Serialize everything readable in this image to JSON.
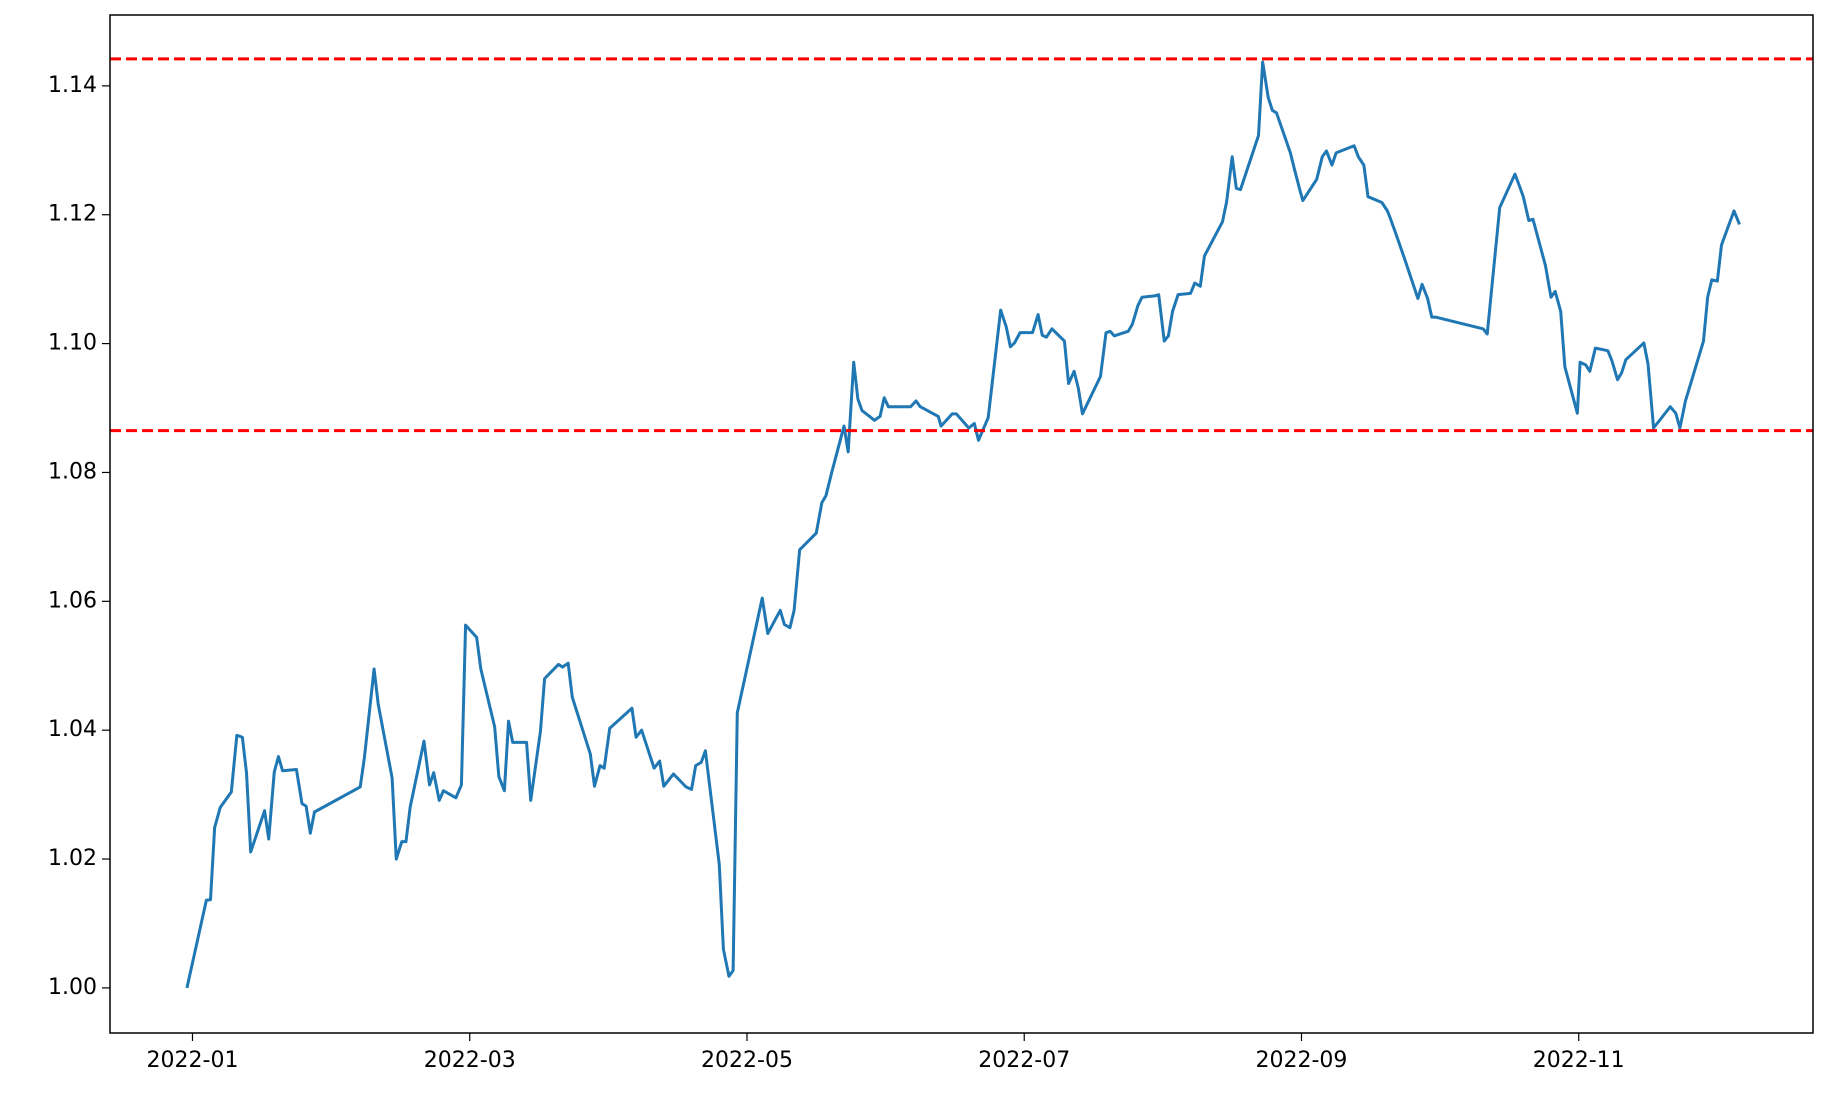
{
  "chart_data": {
    "type": "line",
    "x": [
      0.96,
      1.1,
      1.13,
      1.16,
      1.2,
      1.28,
      1.32,
      1.36,
      1.39,
      1.42,
      1.52,
      1.55,
      1.59,
      1.62,
      1.65,
      1.75,
      1.79,
      1.82,
      1.85,
      1.88,
      2.21,
      2.24,
      2.31,
      2.34,
      2.44,
      2.47,
      2.51,
      2.54,
      2.57,
      2.67,
      2.71,
      2.74,
      2.78,
      2.81,
      2.9,
      2.94,
      2.97,
      3.05,
      3.08,
      3.18,
      3.21,
      3.25,
      3.28,
      3.31,
      3.41,
      3.44,
      3.51,
      3.54,
      3.64,
      3.67,
      3.71,
      3.74,
      3.87,
      3.9,
      3.94,
      3.97,
      4.01,
      4.17,
      4.2,
      4.24,
      4.33,
      4.37,
      4.4,
      4.47,
      4.56,
      4.6,
      4.63,
      4.67,
      4.7,
      4.8,
      4.83,
      4.87,
      4.9,
      4.93,
      5.11,
      5.15,
      5.24,
      5.27,
      5.31,
      5.34,
      5.38,
      5.5,
      5.54,
      5.57,
      5.61,
      5.7,
      5.73,
      5.77,
      5.8,
      5.83,
      5.92,
      5.96,
      5.99,
      6.02,
      6.18,
      6.22,
      6.25,
      6.38,
      6.4,
      6.48,
      6.51,
      6.6,
      6.64,
      6.67,
      6.74,
      6.83,
      6.87,
      6.9,
      6.93,
      6.97,
      7.06,
      7.1,
      7.13,
      7.16,
      7.2,
      7.29,
      7.32,
      7.36,
      7.39,
      7.42,
      7.55,
      7.59,
      7.62,
      7.65,
      7.75,
      7.78,
      7.82,
      7.85,
      7.94,
      7.97,
      8.01,
      8.04,
      8.07,
      8.11,
      8.2,
      8.23,
      8.27,
      8.3,
      8.43,
      8.46,
      8.5,
      8.53,
      8.56,
      8.69,
      8.72,
      8.76,
      8.79,
      8.82,
      8.92,
      8.95,
      8.99,
      9.01,
      9.11,
      9.15,
      9.18,
      9.22,
      9.25,
      9.38,
      9.41,
      9.45,
      9.48,
      9.58,
      9.62,
      9.64,
      9.68,
      9.74,
      9.84,
      9.87,
      9.91,
      9.94,
      9.97,
      10.31,
      10.34,
      10.43,
      10.54,
      10.57,
      10.6,
      10.64,
      10.67,
      10.76,
      10.8,
      10.83,
      10.87,
      10.9,
      10.99,
      11.01,
      11.05,
      11.08,
      11.12,
      11.21,
      11.24,
      11.28,
      11.31,
      11.34,
      11.47,
      11.5,
      11.54,
      11.66,
      11.7,
      11.73,
      11.77,
      11.9,
      11.93,
      11.96,
      12.0,
      12.03,
      12.12,
      12.16
    ],
    "series": [
      {
        "color": "#1f77b4",
        "values": [
          1.0,
          1.0136,
          1.0137,
          1.0249,
          1.028,
          1.0304,
          1.0392,
          1.0389,
          1.0333,
          1.0211,
          1.0275,
          1.0231,
          1.0335,
          1.0359,
          1.0337,
          1.0339,
          1.0286,
          1.0282,
          1.024,
          1.0273,
          1.0312,
          1.0357,
          1.0495,
          1.044,
          1.0326,
          1.02,
          1.0227,
          1.0227,
          1.028,
          1.0383,
          1.0315,
          1.0334,
          1.0291,
          1.0306,
          1.0295,
          1.0315,
          1.0563,
          1.0544,
          1.0495,
          1.0405,
          1.0328,
          1.0306,
          1.0414,
          1.0381,
          1.0381,
          1.0291,
          1.0398,
          1.048,
          1.0502,
          1.0498,
          1.0504,
          1.0451,
          1.0363,
          1.0313,
          1.0345,
          1.0341,
          1.0403,
          1.0434,
          1.0389,
          1.04,
          1.0341,
          1.0352,
          1.0313,
          1.0332,
          1.0312,
          1.0308,
          1.0345,
          1.035,
          1.0368,
          1.0192,
          1.006,
          1.0018,
          1.0027,
          1.0427,
          1.0605,
          1.055,
          1.0586,
          1.0564,
          1.0559,
          1.0586,
          1.068,
          1.0706,
          1.0753,
          1.0764,
          1.0799,
          1.0872,
          1.0832,
          1.0971,
          1.0914,
          1.0896,
          1.0881,
          1.0887,
          1.0916,
          1.0902,
          1.0902,
          1.0911,
          1.0902,
          1.0887,
          1.0872,
          1.0891,
          1.0891,
          1.0869,
          1.0876,
          1.085,
          1.0885,
          1.1052,
          1.1026,
          1.0995,
          1.1001,
          1.1017,
          1.1017,
          1.1045,
          1.1013,
          1.101,
          1.1023,
          1.1004,
          1.0938,
          1.0957,
          1.0931,
          1.0891,
          1.0949,
          1.1017,
          1.1019,
          1.1012,
          1.1019,
          1.103,
          1.1059,
          1.1072,
          1.1074,
          1.1076,
          1.1004,
          1.1012,
          1.105,
          1.1076,
          1.1078,
          1.1094,
          1.1089,
          1.1136,
          1.1189,
          1.122,
          1.129,
          1.1241,
          1.1239,
          1.1323,
          1.1437,
          1.1382,
          1.1362,
          1.1358,
          1.1296,
          1.127,
          1.1237,
          1.1222,
          1.1255,
          1.129,
          1.1299,
          1.1277,
          1.1296,
          1.1307,
          1.129,
          1.1277,
          1.1228,
          1.1219,
          1.1206,
          1.1195,
          1.1171,
          1.1134,
          1.107,
          1.1092,
          1.107,
          1.1041,
          1.1041,
          1.1023,
          1.1015,
          1.1211,
          1.1263,
          1.1246,
          1.1228,
          1.1191,
          1.1193,
          1.1121,
          1.1072,
          1.1081,
          1.105,
          1.0964,
          1.0892,
          1.0971,
          1.0967,
          1.0957,
          1.0993,
          1.0989,
          1.0973,
          1.0944,
          1.0955,
          1.0975,
          1.1001,
          1.0968,
          1.0869,
          1.0902,
          1.0892,
          1.0869,
          1.0911,
          1.1004,
          1.1072,
          1.1099,
          1.1097,
          1.1153,
          1.1206,
          1.1185
        ]
      }
    ],
    "hlines": [
      {
        "value": 1.1442,
        "color": "#ff0000"
      },
      {
        "value": 1.0865,
        "color": "#ff0000"
      }
    ],
    "xlim": [
      0.405,
      12.69
    ],
    "xticks": [
      {
        "value": 1,
        "label": "2022-01"
      },
      {
        "value": 3,
        "label": "2022-03"
      },
      {
        "value": 5,
        "label": "2022-05"
      },
      {
        "value": 7,
        "label": "2022-07"
      },
      {
        "value": 9,
        "label": "2022-09"
      },
      {
        "value": 11,
        "label": "2022-11"
      }
    ],
    "ylim": [
      0.993,
      1.151
    ],
    "yticks": [
      {
        "value": 1.0,
        "label": "1.00"
      },
      1.02,
      1.04,
      1.06,
      1.08,
      {
        "value": 1.1,
        "label": "1.10"
      },
      1.12,
      1.14
    ],
    "grid": false
  }
}
